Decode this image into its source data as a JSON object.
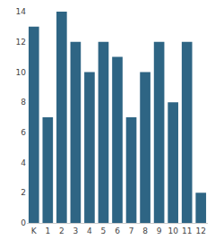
{
  "chart_data": {
    "type": "bar",
    "categories": [
      "K",
      "1",
      "2",
      "3",
      "4",
      "5",
      "6",
      "7",
      "8",
      "9",
      "10",
      "11",
      "12"
    ],
    "values": [
      13,
      7,
      14,
      12,
      10,
      12,
      11,
      7,
      10,
      12,
      8,
      12,
      2
    ],
    "color": "#2e6584",
    "ylim": [
      0,
      14
    ],
    "yticks": [
      0,
      2,
      4,
      6,
      8,
      10,
      12,
      14
    ],
    "grid": false
  }
}
